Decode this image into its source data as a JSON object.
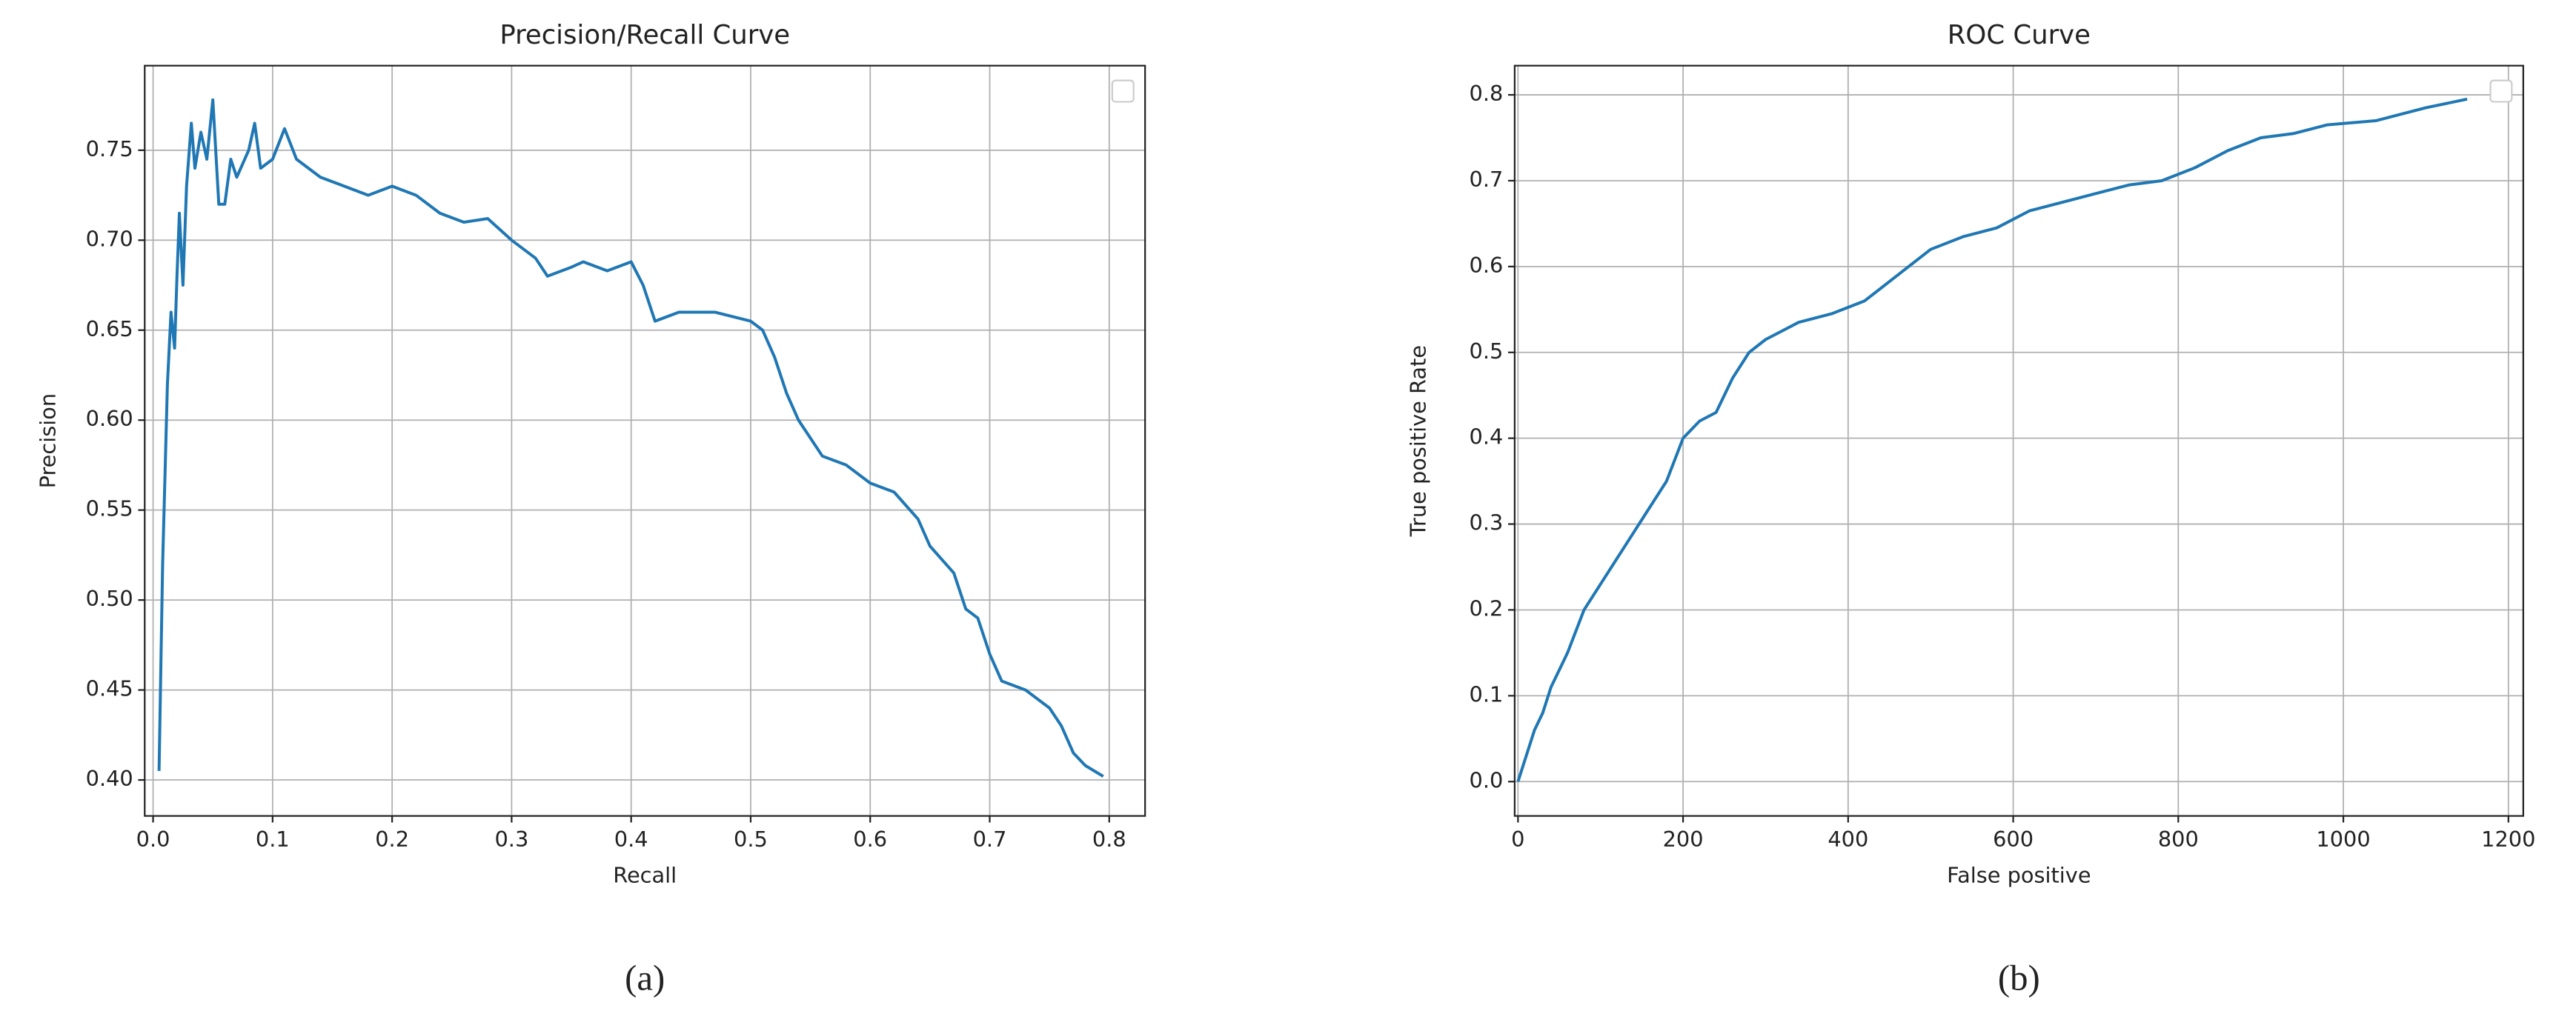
{
  "chart_data": [
    {
      "type": "line",
      "title": "Precision/Recall Curve",
      "xlabel": "Recall",
      "ylabel": "Precision",
      "caption": "(a)",
      "color": "#1f77b4",
      "grid": true,
      "x": [
        0.005,
        0.008,
        0.012,
        0.015,
        0.018,
        0.02,
        0.022,
        0.025,
        0.028,
        0.032,
        0.035,
        0.04,
        0.045,
        0.05,
        0.055,
        0.06,
        0.065,
        0.07,
        0.08,
        0.085,
        0.09,
        0.1,
        0.11,
        0.12,
        0.14,
        0.16,
        0.18,
        0.2,
        0.22,
        0.24,
        0.26,
        0.28,
        0.3,
        0.32,
        0.33,
        0.35,
        0.36,
        0.38,
        0.4,
        0.41,
        0.42,
        0.44,
        0.47,
        0.5,
        0.51,
        0.52,
        0.53,
        0.54,
        0.55,
        0.56,
        0.58,
        0.6,
        0.62,
        0.64,
        0.65,
        0.67,
        0.68,
        0.69,
        0.7,
        0.71,
        0.73,
        0.75,
        0.76,
        0.77,
        0.78,
        0.795
      ],
      "values": [
        0.405,
        0.52,
        0.62,
        0.66,
        0.64,
        0.68,
        0.715,
        0.675,
        0.73,
        0.765,
        0.74,
        0.76,
        0.745,
        0.778,
        0.72,
        0.72,
        0.745,
        0.735,
        0.75,
        0.765,
        0.74,
        0.745,
        0.762,
        0.745,
        0.735,
        0.73,
        0.725,
        0.73,
        0.725,
        0.715,
        0.71,
        0.712,
        0.7,
        0.69,
        0.68,
        0.685,
        0.688,
        0.683,
        0.688,
        0.675,
        0.655,
        0.66,
        0.66,
        0.655,
        0.65,
        0.635,
        0.615,
        0.6,
        0.59,
        0.58,
        0.575,
        0.565,
        0.56,
        0.545,
        0.53,
        0.515,
        0.495,
        0.49,
        0.47,
        0.455,
        0.45,
        0.44,
        0.43,
        0.415,
        0.408,
        0.402
      ],
      "xlim": [
        -0.007,
        0.83
      ],
      "ylim": [
        0.38,
        0.797
      ],
      "xticks": [
        {
          "value": 0,
          "label": "0.0"
        },
        0.1,
        0.2,
        0.3,
        0.4,
        0.5,
        0.6,
        0.7,
        0.8
      ],
      "yticks": [
        {
          "value": 0.4,
          "label": "0.40"
        },
        0.45,
        {
          "value": 0.5,
          "label": "0.50"
        },
        0.55,
        {
          "value": 0.6,
          "label": "0.60"
        },
        0.65,
        {
          "value": 0.7,
          "label": "0.70"
        },
        0.75
      ]
    },
    {
      "type": "line",
      "title": "ROC Curve",
      "xlabel": "False positive",
      "ylabel": "True positive Rate",
      "caption": "(b)",
      "color": "#1f77b4",
      "grid": true,
      "x": [
        0,
        10,
        20,
        30,
        40,
        60,
        80,
        100,
        120,
        140,
        160,
        180,
        200,
        220,
        240,
        260,
        280,
        300,
        340,
        380,
        420,
        460,
        500,
        540,
        580,
        620,
        660,
        700,
        740,
        780,
        820,
        860,
        900,
        940,
        980,
        1040,
        1100,
        1150
      ],
      "values": [
        0,
        0.03,
        0.06,
        0.08,
        0.11,
        0.15,
        0.2,
        0.23,
        0.26,
        0.29,
        0.32,
        0.35,
        0.4,
        0.42,
        0.43,
        0.47,
        0.5,
        0.515,
        0.535,
        0.545,
        0.56,
        0.59,
        0.62,
        0.635,
        0.645,
        0.665,
        0.675,
        0.685,
        0.695,
        0.7,
        0.715,
        0.735,
        0.75,
        0.755,
        0.765,
        0.77,
        0.785,
        0.795
      ],
      "xlim": [
        -4,
        1218
      ],
      "ylim": [
        -0.04,
        0.834
      ],
      "xticks": [
        0,
        200,
        400,
        600,
        800,
        1000,
        1200
      ],
      "yticks": [
        {
          "value": 0,
          "label": "0.0"
        },
        0.1,
        0.2,
        0.3,
        0.4,
        0.5,
        0.6,
        0.7,
        0.8
      ]
    }
  ]
}
